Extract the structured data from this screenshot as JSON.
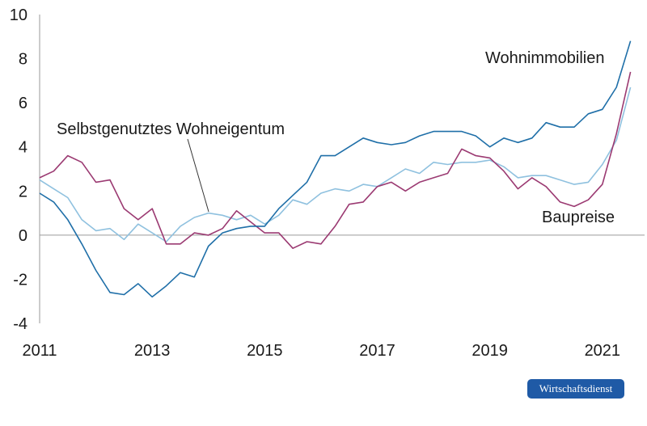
{
  "chart_data": {
    "type": "line",
    "x_labels": [
      "2011",
      "2013",
      "2015",
      "2017",
      "2019",
      "2021"
    ],
    "y_ticks": [
      "10",
      "8",
      "6",
      "4",
      "2",
      "0",
      "-2",
      "-4"
    ],
    "ylim": [
      -4,
      10
    ],
    "x_range": [
      2011.0,
      2021.75
    ],
    "grid": false,
    "series": [
      {
        "name": "Wohnimmobilien",
        "color": "#1f6fa8",
        "x": [
          2011.0,
          2011.25,
          2011.5,
          2011.75,
          2012.0,
          2012.25,
          2012.5,
          2012.75,
          2013.0,
          2013.25,
          2013.5,
          2013.75,
          2014.0,
          2014.25,
          2014.5,
          2014.75,
          2015.0,
          2015.25,
          2015.5,
          2015.75,
          2016.0,
          2016.25,
          2016.5,
          2016.75,
          2017.0,
          2017.25,
          2017.5,
          2017.75,
          2018.0,
          2018.25,
          2018.5,
          2018.75,
          2019.0,
          2019.25,
          2019.5,
          2019.75,
          2020.0,
          2020.25,
          2020.5,
          2020.75,
          2021.0,
          2021.25,
          2021.5,
          2021.75
        ],
        "values": [
          1.9,
          1.5,
          0.7,
          -0.4,
          -1.6,
          -2.6,
          -2.7,
          -2.2,
          -2.8,
          -2.3,
          -1.7,
          -1.9,
          -0.5,
          0.1,
          0.3,
          0.4,
          0.4,
          1.2,
          1.8,
          2.4,
          3.6,
          3.6,
          4.0,
          4.4,
          4.2,
          4.1,
          4.2,
          4.5,
          4.7,
          4.7,
          4.7,
          4.5,
          4.0,
          4.4,
          4.2,
          4.4,
          5.1,
          4.9,
          4.9,
          5.5,
          5.7,
          6.7,
          8.8,
          null
        ]
      },
      {
        "name": "Baupreise",
        "color": "#9b3a72",
        "x": [
          2011.0,
          2011.25,
          2011.5,
          2011.75,
          2012.0,
          2012.25,
          2012.5,
          2012.75,
          2013.0,
          2013.25,
          2013.5,
          2013.75,
          2014.0,
          2014.25,
          2014.5,
          2014.75,
          2015.0,
          2015.25,
          2015.5,
          2015.75,
          2016.0,
          2016.25,
          2016.5,
          2016.75,
          2017.0,
          2017.25,
          2017.5,
          2017.75,
          2018.0,
          2018.25,
          2018.5,
          2018.75,
          2019.0,
          2019.25,
          2019.5,
          2019.75,
          2020.0,
          2020.25,
          2020.5,
          2020.75,
          2021.0,
          2021.25,
          2021.5,
          2021.75
        ],
        "values": [
          2.6,
          2.9,
          3.6,
          3.3,
          2.4,
          2.5,
          1.2,
          0.7,
          1.2,
          -0.4,
          -0.4,
          0.1,
          0.0,
          0.3,
          1.1,
          0.6,
          0.1,
          0.1,
          -0.6,
          -0.3,
          -0.4,
          0.4,
          1.4,
          1.5,
          2.2,
          2.4,
          2.0,
          2.4,
          2.6,
          2.8,
          3.9,
          3.6,
          3.5,
          2.9,
          2.1,
          2.6,
          2.2,
          1.5,
          1.3,
          1.6,
          2.3,
          4.6,
          7.4,
          null
        ]
      },
      {
        "name": "Selbstgenutztes Wohneigentum",
        "color": "#8fc1df",
        "x": [
          2011.0,
          2011.25,
          2011.5,
          2011.75,
          2012.0,
          2012.25,
          2012.5,
          2012.75,
          2013.0,
          2013.25,
          2013.5,
          2013.75,
          2014.0,
          2014.25,
          2014.5,
          2014.75,
          2015.0,
          2015.25,
          2015.5,
          2015.75,
          2016.0,
          2016.25,
          2016.5,
          2016.75,
          2017.0,
          2017.25,
          2017.5,
          2017.75,
          2018.0,
          2018.25,
          2018.5,
          2018.75,
          2019.0,
          2019.25,
          2019.5,
          2019.75,
          2020.0,
          2020.25,
          2020.5,
          2020.75,
          2021.0,
          2021.25,
          2021.5,
          2021.75
        ],
        "values": [
          2.5,
          2.1,
          1.7,
          0.7,
          0.2,
          0.3,
          -0.2,
          0.5,
          0.1,
          -0.3,
          0.4,
          0.8,
          1.0,
          0.9,
          0.7,
          0.9,
          0.5,
          0.9,
          1.6,
          1.4,
          1.9,
          2.1,
          2.0,
          2.3,
          2.2,
          2.6,
          3.0,
          2.8,
          3.3,
          3.2,
          3.3,
          3.3,
          3.4,
          3.1,
          2.6,
          2.7,
          2.7,
          2.5,
          2.3,
          2.4,
          3.2,
          4.3,
          6.7,
          null
        ]
      }
    ]
  },
  "annotations": {
    "wohnimmobilien": "Wohnimmobilien",
    "selbstgenutztes": "Selbstgenutztes Wohneigentum",
    "baupreise": "Baupreise"
  },
  "badge": "Wirtschaftsdienst"
}
